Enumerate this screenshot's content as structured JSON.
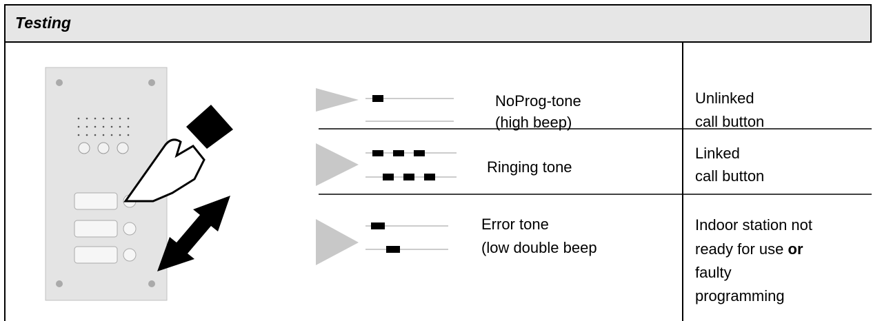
{
  "header": {
    "title": "Testing"
  },
  "rows": [
    {
      "tone_lines": [
        "NoProg-tone",
        "(high beep)"
      ],
      "meaning_lines": [
        "Unlinked",
        "call button"
      ]
    },
    {
      "tone_lines": [
        "Ringing tone"
      ],
      "meaning_lines": [
        "Linked",
        "call button"
      ]
    },
    {
      "tone_lines": [
        "Error tone",
        "(low double beep"
      ],
      "meaning_parts": [
        "Indoor station not",
        "ready for use ",
        "or",
        "faulty",
        "programming"
      ]
    }
  ]
}
